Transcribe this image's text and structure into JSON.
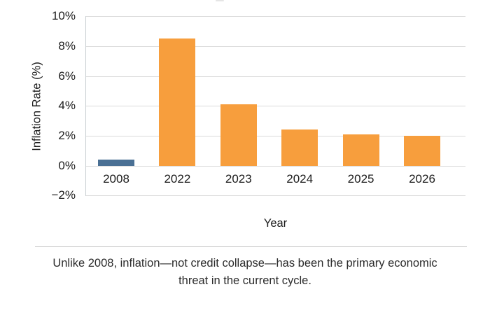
{
  "chart_data": {
    "type": "bar",
    "categories": [
      "2008",
      "2022",
      "2023",
      "2024",
      "2025",
      "2026"
    ],
    "values": [
      0.4,
      8.5,
      4.1,
      2.4,
      2.1,
      2.0
    ],
    "bar_colors": [
      "#4A7094",
      "#F79E3D",
      "#F79E3D",
      "#F79E3D",
      "#F79E3D",
      "#F79E3D"
    ],
    "xlabel": "Year",
    "ylabel": "Inflation Rate (%)",
    "ylim": [
      -2,
      10
    ],
    "grid": true,
    "legend": "none",
    "y_ticks": [
      {
        "value": 10,
        "label": "10%"
      },
      {
        "value": 8,
        "label": "8%"
      },
      {
        "value": 6,
        "label": "6%"
      },
      {
        "value": 4,
        "label": "4%"
      },
      {
        "value": 2,
        "label": "2%"
      },
      {
        "value": 0,
        "label": "0%"
      },
      {
        "value": -2,
        "label": "−2%"
      }
    ],
    "highlight": {
      "category": "2008",
      "color": "#4A7094"
    },
    "default_color": "#F79E3D"
  },
  "caption": {
    "lines": [
      "Unlike 2008, inflation—not credit collapse—has been the primary economic",
      "threat in the current cycle."
    ]
  },
  "colors": {
    "bar_orange": "#F79E3D",
    "bar_blue": "#4A7094",
    "gridline": "#DBDBDB",
    "axis_line": "#C9CED2",
    "divider": "#C9C9C9",
    "text": "#1C1C1C"
  }
}
